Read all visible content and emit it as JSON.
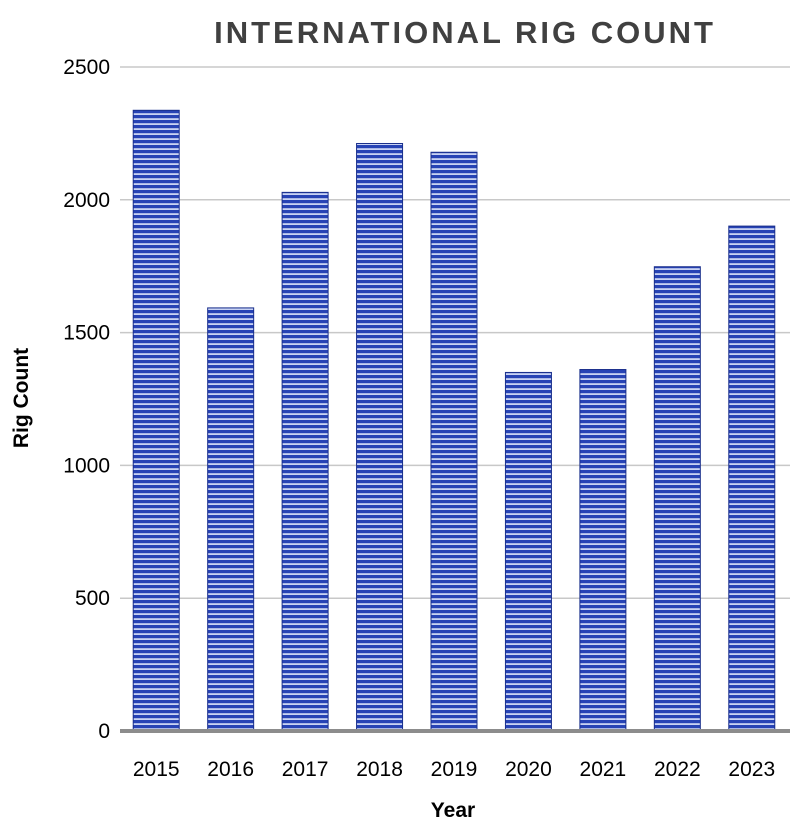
{
  "chart_data": {
    "type": "bar",
    "title": "INTERNATIONAL RIG COUNT",
    "xlabel": "Year",
    "ylabel": "Rig Count",
    "categories": [
      "2015",
      "2016",
      "2017",
      "2018",
      "2019",
      "2020",
      "2021",
      "2022",
      "2023"
    ],
    "values": [
      2337,
      1593,
      2028,
      2212,
      2179,
      1350,
      1361,
      1748,
      1901
    ],
    "ylim": [
      0,
      2500
    ],
    "yticks": [
      0,
      500,
      1000,
      1500,
      2000,
      2500
    ],
    "grid": true,
    "legend": "none",
    "colors": {
      "bar": "#2743b5",
      "bar_stripe": "#c9d3f3",
      "bar_edge": "#1a2f8c",
      "grid": "#c8c8c8",
      "baseline": "#8c8c8c",
      "title": "#404040"
    }
  }
}
